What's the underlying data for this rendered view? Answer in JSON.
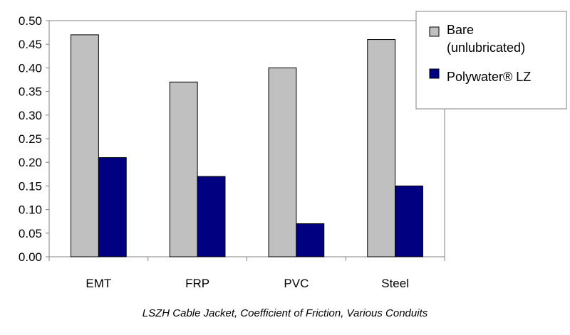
{
  "chart_data": {
    "type": "bar",
    "categories": [
      "EMT",
      "FRP",
      "PVC",
      "Steel"
    ],
    "series": [
      {
        "name": "Bare\n(unlubricated)",
        "values": [
          0.47,
          0.37,
          0.4,
          0.46
        ],
        "color": "#c0c0c0"
      },
      {
        "name": "Polywater® LZ",
        "values": [
          0.21,
          0.17,
          0.07,
          0.15
        ],
        "color": "#000080"
      }
    ],
    "title": "LSZH Cable Jacket, Coefficient of Friction, Various Conduits",
    "xlabel": "",
    "ylabel": "",
    "ylim": [
      0,
      0.5
    ],
    "yticks": [
      "0.00",
      "0.05",
      "0.10",
      "0.15",
      "0.20",
      "0.25",
      "0.30",
      "0.35",
      "0.40",
      "0.45",
      "0.50"
    ],
    "grid": false,
    "legend_position": "top-right"
  }
}
